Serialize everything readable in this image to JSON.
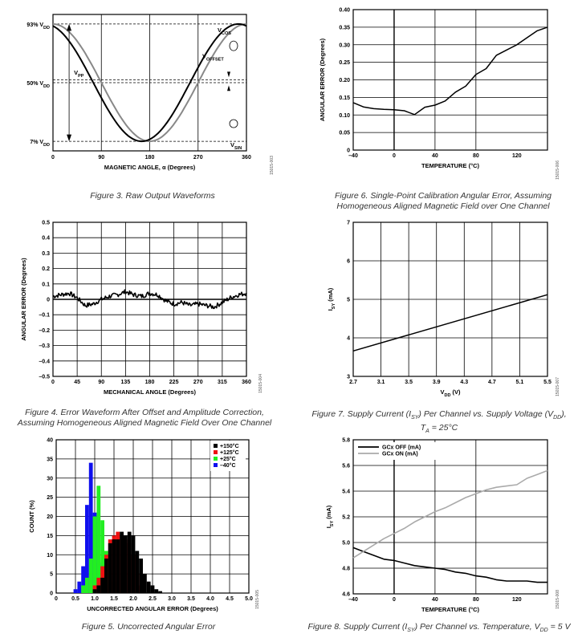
{
  "figures": [
    {
      "id": "fig3",
      "caption": "Figure 3. Raw Output Waveforms",
      "code": "15015-003",
      "chart_data": {
        "type": "line",
        "xlabel": "MAGNETIC ANGLE, α (Degrees)",
        "ylabel": "",
        "xlim": [
          0,
          360
        ],
        "xticks": [
          "0",
          "90",
          "180",
          "270",
          "360"
        ],
        "ytick_labels": [
          "93% V",
          "50% V",
          "7% V"
        ],
        "ytick_sub": "DD",
        "grid": true,
        "annotations": {
          "vcos": "V",
          "vcos_sub": "COS",
          "voffset": "V",
          "voffset_sub": "OFFSET",
          "vpp": "V",
          "vpp_sub": "PP",
          "vsin": "V",
          "vsin_sub": "SIN"
        },
        "series": [
          {
            "name": "VCOS",
            "color": "#888888",
            "function": "cos",
            "amplitude_pct": 43,
            "offset_pct": 50
          },
          {
            "name": "VSIN",
            "color": "#000000",
            "function": "sin",
            "amplitude_pct": 43,
            "offset_pct": 50
          }
        ]
      }
    },
    {
      "id": "fig6",
      "caption": "Figure 6. Single-Point Calibration Angular Error, Assuming Homogeneous Aligned Magnetic Field over One Channel",
      "code": "15015-006",
      "chart_data": {
        "type": "line",
        "xlabel": "TEMPERATURE (°C)",
        "ylabel": "ANGULAR ERROR (Degrees)",
        "xlim": [
          -40,
          150
        ],
        "ylim": [
          0,
          0.4
        ],
        "xticks": [
          -40,
          0,
          40,
          80,
          120
        ],
        "yticks": [
          0,
          0.05,
          0.1,
          0.15,
          0.2,
          0.25,
          0.3,
          0.35,
          0.4
        ],
        "ytick_labels": [
          "0",
          "0.05",
          "0.10",
          "0.15",
          "0.20",
          "0.25",
          "0.30",
          "0.35",
          "0.40"
        ],
        "xtick_labels": [
          "–40",
          "0",
          "40",
          "80",
          "120"
        ],
        "grid": true,
        "series": [
          {
            "name": "",
            "color": "#000000",
            "x": [
              -40,
              -30,
              -20,
              -10,
              0,
              10,
              20,
              30,
              40,
              50,
              60,
              70,
              80,
              90,
              100,
              110,
              120,
              130,
              140,
              150
            ],
            "y": [
              0.135,
              0.123,
              0.118,
              0.116,
              0.115,
              0.112,
              0.101,
              0.122,
              0.128,
              0.14,
              0.165,
              0.182,
              0.215,
              0.232,
              0.27,
              0.285,
              0.3,
              0.32,
              0.34,
              0.35
            ]
          }
        ]
      }
    },
    {
      "id": "fig4",
      "caption": "Figure 4. Error Waveform After Offset and Amplitude Correction, Assuming Homogeneous Aligned Magnetic Field Over One Channel",
      "code": "15015-004",
      "chart_data": {
        "type": "line",
        "xlabel": "MECHANICAL ANGLE (Degrees)",
        "ylabel": "ANGULAR ERROR (Degrees)",
        "xlim": [
          0,
          360
        ],
        "ylim": [
          -0.5,
          0.5
        ],
        "xticks": [
          0,
          45,
          90,
          135,
          180,
          225,
          270,
          315,
          360
        ],
        "yticks": [
          -0.5,
          -0.4,
          -0.3,
          -0.2,
          -0.1,
          0,
          0.1,
          0.2,
          0.3,
          0.4,
          0.5
        ],
        "ytick_labels": [
          "–0.5",
          "–0.4",
          "–0.3",
          "–0.2",
          "–0.1",
          "0",
          "0.1",
          "0.2",
          "0.3",
          "0.4",
          "0.5"
        ],
        "xtick_labels": [
          "0",
          "45",
          "90",
          "135",
          "180",
          "225",
          "270",
          "315",
          "360"
        ],
        "grid": true,
        "series": [
          {
            "name": "",
            "color": "#000000",
            "x": [
              0,
              15,
              30,
              45,
              60,
              75,
              90,
              105,
              120,
              135,
              150,
              165,
              180,
              195,
              210,
              225,
              240,
              255,
              270,
              285,
              300,
              315,
              330,
              345,
              360
            ],
            "y": [
              0.02,
              0.03,
              0.04,
              0.01,
              -0.04,
              -0.03,
              0.0,
              0.02,
              0.03,
              0.05,
              0.03,
              0.02,
              0.04,
              0.03,
              -0.01,
              -0.03,
              -0.02,
              -0.04,
              -0.03,
              -0.04,
              -0.05,
              -0.02,
              0.01,
              0.03,
              0.04
            ]
          }
        ]
      }
    },
    {
      "id": "fig7",
      "caption": "Figure 7. Supply Current (I",
      "caption_sub": "SY",
      "caption_rest": ") Per Channel vs. Supply Voltage (V",
      "caption_sub2": "DD",
      "caption_end": "), T",
      "caption_sub3": "A",
      "caption_tail": " = 25°C",
      "code": "15015-007",
      "chart_data": {
        "type": "line",
        "xlabel": "V",
        "xlabel_sub": "DD",
        "xlabel_unit": " (V)",
        "ylabel": "I",
        "ylabel_sub": "SY",
        "ylabel_unit": " (mA)",
        "xlim": [
          2.7,
          5.5
        ],
        "ylim": [
          3,
          7
        ],
        "xticks": [
          2.7,
          3.1,
          3.5,
          3.9,
          4.3,
          4.7,
          5.1,
          5.5
        ],
        "yticks": [
          3,
          4,
          5,
          6,
          7
        ],
        "xtick_labels": [
          "2.7",
          "3.1",
          "3.5",
          "3.9",
          "4.3",
          "4.7",
          "5.1",
          "5.5"
        ],
        "ytick_labels": [
          "3",
          "4",
          "5",
          "6",
          "7"
        ],
        "grid": true,
        "series": [
          {
            "name": "",
            "color": "#000000",
            "x": [
              2.7,
              5.5
            ],
            "y": [
              3.66,
              5.12
            ]
          }
        ]
      }
    },
    {
      "id": "fig5",
      "caption": "Figure 5. Uncorrected Angular Error",
      "code": "15015-005",
      "chart_data": {
        "type": "bar",
        "xlabel": "UNCORRECTED ANGULAR ERROR (Degrees)",
        "ylabel": "COUNT (%)",
        "xlim": [
          0,
          5.0
        ],
        "ylim": [
          0,
          40
        ],
        "xticks": [
          0,
          0.5,
          1.0,
          1.5,
          2.0,
          2.5,
          3.0,
          3.5,
          4.0,
          4.5,
          5.0
        ],
        "yticks": [
          0,
          5,
          10,
          15,
          20,
          25,
          30,
          35,
          40
        ],
        "xtick_labels": [
          "0",
          "0.5",
          "1.0",
          "1.5",
          "2.0",
          "2.5",
          "3.0",
          "3.5",
          "4.0",
          "4.5",
          "5.0"
        ],
        "ytick_labels": [
          "0",
          "5",
          "10",
          "15",
          "20",
          "25",
          "30",
          "35",
          "40"
        ],
        "grid": true,
        "legend_position": "top-right",
        "bin_width": 0.1,
        "series": [
          {
            "name": "–40°C",
            "color": "#1010ee",
            "x": [
              0.5,
              0.6,
              0.7,
              0.8,
              0.9,
              1.0,
              1.1,
              1.2,
              1.3
            ],
            "values": [
              1,
              3,
              7,
              23,
              34,
              21,
              8,
              3,
              1
            ]
          },
          {
            "name": "+25°C",
            "color": "#22ee22",
            "x": [
              0.7,
              0.8,
              0.9,
              1.0,
              1.1,
              1.2,
              1.3,
              1.4,
              1.5,
              1.6,
              1.7
            ],
            "values": [
              2,
              4,
              9,
              20,
              28,
              19,
              11,
              6,
              3,
              1,
              0.5
            ]
          },
          {
            "name": "+125°C",
            "color": "#ee1111",
            "x": [
              1.0,
              1.1,
              1.2,
              1.3,
              1.4,
              1.5,
              1.6,
              1.7,
              1.8,
              1.9,
              2.0,
              2.1,
              2.2
            ],
            "values": [
              2,
              4,
              7,
              10,
              14,
              15,
              16,
              15,
              14,
              13,
              10,
              5,
              2
            ]
          },
          {
            "name": "+150°C",
            "color": "#000000",
            "x": [
              1.0,
              1.1,
              1.2,
              1.3,
              1.4,
              1.5,
              1.6,
              1.7,
              1.8,
              1.9,
              2.0,
              2.1,
              2.2,
              2.3,
              2.4,
              2.5,
              2.6,
              2.7
            ],
            "values": [
              1,
              2,
              4,
              9,
              13,
              14,
              14,
              16,
              15,
              16,
              15,
              11,
              9,
              5,
              3,
              2,
              1,
              0.5
            ]
          }
        ]
      }
    },
    {
      "id": "fig8",
      "caption": "Figure 8. Supply Current (I",
      "caption_sub": "SY",
      "caption_rest": ") Per Channel vs. Temperature, V",
      "caption_sub2": "DD",
      "caption_end": " = 5 V",
      "code": "15015-008",
      "chart_data": {
        "type": "line",
        "xlabel": "TEMPERATURE (°C)",
        "ylabel": "I",
        "ylabel_sub": "SY",
        "ylabel_unit": " (mA)",
        "xlim": [
          -40,
          150
        ],
        "ylim": [
          4.6,
          5.8
        ],
        "xticks": [
          -40,
          0,
          40,
          80,
          120
        ],
        "yticks": [
          4.6,
          4.8,
          5.0,
          5.2,
          5.4,
          5.6,
          5.8
        ],
        "xtick_labels": [
          "–40",
          "0",
          "40",
          "80",
          "120"
        ],
        "ytick_labels": [
          "4.6",
          "4.8",
          "5.0",
          "5.2",
          "5.4",
          "5.6",
          "5.8"
        ],
        "grid": true,
        "legend_position": "top-left",
        "series": [
          {
            "name": "GCx OFF (mA)",
            "color": "#000000",
            "x": [
              -40,
              -30,
              -20,
              -10,
              0,
              10,
              20,
              30,
              40,
              50,
              60,
              70,
              80,
              90,
              100,
              110,
              120,
              130,
              140,
              150
            ],
            "y": [
              4.96,
              4.93,
              4.9,
              4.87,
              4.86,
              4.84,
              4.82,
              4.81,
              4.8,
              4.79,
              4.77,
              4.76,
              4.74,
              4.73,
              4.71,
              4.7,
              4.7,
              4.7,
              4.69,
              4.69
            ]
          },
          {
            "name": "GCx ON (mA)",
            "color": "#aaaaaa",
            "x": [
              -40,
              -30,
              -20,
              -10,
              0,
              10,
              20,
              30,
              40,
              50,
              60,
              70,
              80,
              90,
              100,
              110,
              120,
              130,
              140,
              150
            ],
            "y": [
              4.88,
              4.93,
              4.98,
              5.03,
              5.07,
              5.11,
              5.16,
              5.2,
              5.24,
              5.27,
              5.31,
              5.35,
              5.38,
              5.41,
              5.43,
              5.44,
              5.45,
              5.5,
              5.53,
              5.56
            ]
          }
        ]
      }
    }
  ]
}
